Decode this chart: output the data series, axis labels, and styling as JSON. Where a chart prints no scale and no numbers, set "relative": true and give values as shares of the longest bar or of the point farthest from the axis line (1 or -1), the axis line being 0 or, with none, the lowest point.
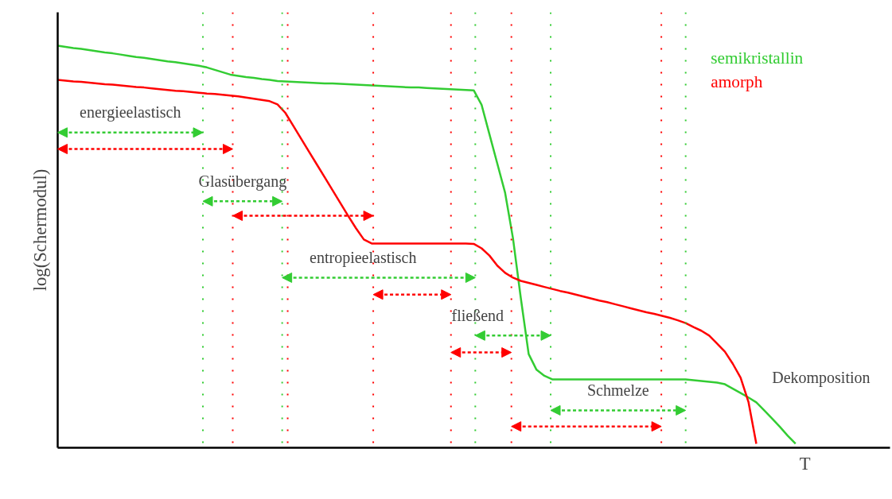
{
  "chart_data": {
    "type": "line",
    "relative": true,
    "xlabel": "T",
    "ylabel": "log(Schermodul)",
    "tick_labels": false,
    "grid": "x",
    "line_style": "solid",
    "categories": [
      null,
      null,
      null,
      null,
      null,
      null,
      null,
      null,
      null,
      null,
      null,
      null,
      null,
      null,
      null,
      null,
      null,
      null,
      null,
      null,
      null,
      null,
      null,
      null,
      null,
      null,
      null,
      null,
      null,
      null,
      null,
      null,
      null,
      null,
      null,
      null,
      null,
      null,
      null,
      null,
      null,
      null,
      null,
      null,
      null,
      null,
      null,
      null,
      null,
      null,
      null,
      null,
      null,
      null,
      null,
      null,
      null,
      null,
      null,
      null,
      null,
      null,
      null,
      null,
      null,
      null,
      null,
      null,
      null,
      null,
      null,
      null,
      null,
      null,
      null,
      null,
      null,
      null,
      null,
      null,
      null,
      null,
      null,
      null,
      null,
      null,
      null,
      null,
      null,
      null,
      null,
      null,
      null,
      null,
      null
    ],
    "series": [
      {
        "name": "semikristallin",
        "color": "#33cc33",
        "values": [
          1.0,
          0.997,
          0.994,
          0.992,
          0.989,
          0.986,
          0.983,
          0.981,
          0.978,
          0.975,
          0.972,
          0.97,
          0.967,
          0.964,
          0.961,
          0.959,
          0.956,
          0.953,
          0.95,
          0.946,
          0.94,
          0.934,
          0.928,
          0.925,
          0.922,
          0.92,
          0.917,
          0.915,
          0.912,
          0.911,
          0.91,
          0.909,
          0.908,
          0.907,
          0.906,
          0.906,
          0.905,
          0.904,
          0.903,
          0.902,
          0.901,
          0.9,
          0.899,
          0.898,
          0.897,
          0.896,
          0.896,
          0.895,
          0.894,
          0.893,
          0.892,
          0.891,
          0.89,
          0.889,
          0.853,
          0.78,
          0.707,
          0.634,
          0.521,
          0.372,
          0.233,
          0.194,
          0.179,
          0.17,
          0.17,
          0.17,
          0.17,
          0.17,
          0.17,
          0.17,
          0.17,
          0.17,
          0.17,
          0.17,
          0.17,
          0.17,
          0.17,
          0.17,
          0.17,
          0.17,
          0.17,
          0.168,
          0.166,
          0.164,
          0.162,
          0.158,
          0.147,
          0.136,
          0.125,
          0.113,
          0.093,
          0.073,
          0.052,
          0.03,
          0.01
        ]
      },
      {
        "name": "amorph",
        "color": "#ff0000",
        "values": [
          0.915,
          0.913,
          0.911,
          0.91,
          0.908,
          0.906,
          0.904,
          0.903,
          0.901,
          0.899,
          0.897,
          0.896,
          0.894,
          0.892,
          0.89,
          0.888,
          0.887,
          0.885,
          0.883,
          0.881,
          0.88,
          0.878,
          0.876,
          0.874,
          0.871,
          0.868,
          0.865,
          0.862,
          0.854,
          0.833,
          0.801,
          0.769,
          0.737,
          0.705,
          0.673,
          0.641,
          0.609,
          0.577,
          0.546,
          0.518,
          0.508,
          0.508,
          0.508,
          0.508,
          0.508,
          0.508,
          0.508,
          0.508,
          0.508,
          0.508,
          0.508,
          0.508,
          0.508,
          0.507,
          0.496,
          0.478,
          0.453,
          0.435,
          0.423,
          0.415,
          0.41,
          0.405,
          0.4,
          0.395,
          0.39,
          0.386,
          0.381,
          0.376,
          0.371,
          0.366,
          0.362,
          0.357,
          0.352,
          0.347,
          0.342,
          0.337,
          0.333,
          0.328,
          0.323,
          0.317,
          0.31,
          0.3,
          0.291,
          0.279,
          0.259,
          0.239,
          0.209,
          0.174,
          0.114,
          0.01,
          null,
          null,
          null,
          null,
          null
        ]
      }
    ],
    "annotations": [
      "energieelastisch",
      "Glasübergang",
      "entropieelastisch",
      "fließend",
      "Schmelze",
      "Dekomposition"
    ]
  }
}
